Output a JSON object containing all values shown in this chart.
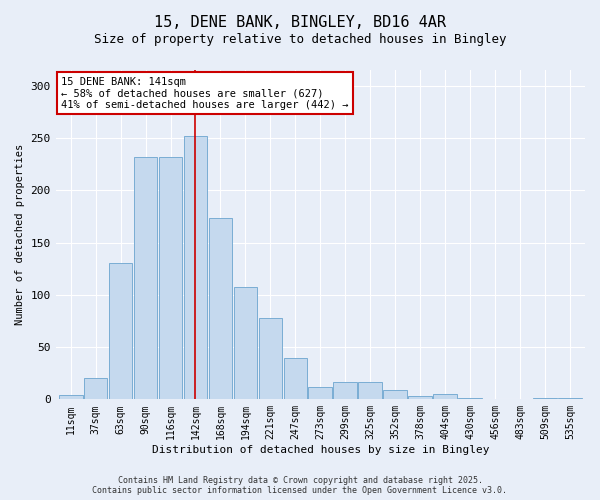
{
  "title_line1": "15, DENE BANK, BINGLEY, BD16 4AR",
  "title_line2": "Size of property relative to detached houses in Bingley",
  "xlabel": "Distribution of detached houses by size in Bingley",
  "ylabel": "Number of detached properties",
  "categories": [
    "11sqm",
    "37sqm",
    "63sqm",
    "90sqm",
    "116sqm",
    "142sqm",
    "168sqm",
    "194sqm",
    "221sqm",
    "247sqm",
    "273sqm",
    "299sqm",
    "325sqm",
    "352sqm",
    "378sqm",
    "404sqm",
    "430sqm",
    "456sqm",
    "483sqm",
    "509sqm",
    "535sqm"
  ],
  "values": [
    4,
    20,
    130,
    232,
    232,
    252,
    173,
    107,
    78,
    40,
    12,
    17,
    17,
    9,
    3,
    5,
    1,
    0,
    0,
    1,
    1
  ],
  "bar_color": "#c5d9ee",
  "bar_edge_color": "#7aadd4",
  "vline_x_index": 5,
  "vline_color": "#cc0000",
  "annotation_text": "15 DENE BANK: 141sqm\n← 58% of detached houses are smaller (627)\n41% of semi-detached houses are larger (442) →",
  "annotation_box_color": "#ffffff",
  "annotation_box_edge_color": "#cc0000",
  "background_color": "#e8eef8",
  "grid_color": "#ffffff",
  "footer_line1": "Contains HM Land Registry data © Crown copyright and database right 2025.",
  "footer_line2": "Contains public sector information licensed under the Open Government Licence v3.0.",
  "ylim": [
    0,
    315
  ],
  "yticks": [
    0,
    50,
    100,
    150,
    200,
    250,
    300
  ]
}
